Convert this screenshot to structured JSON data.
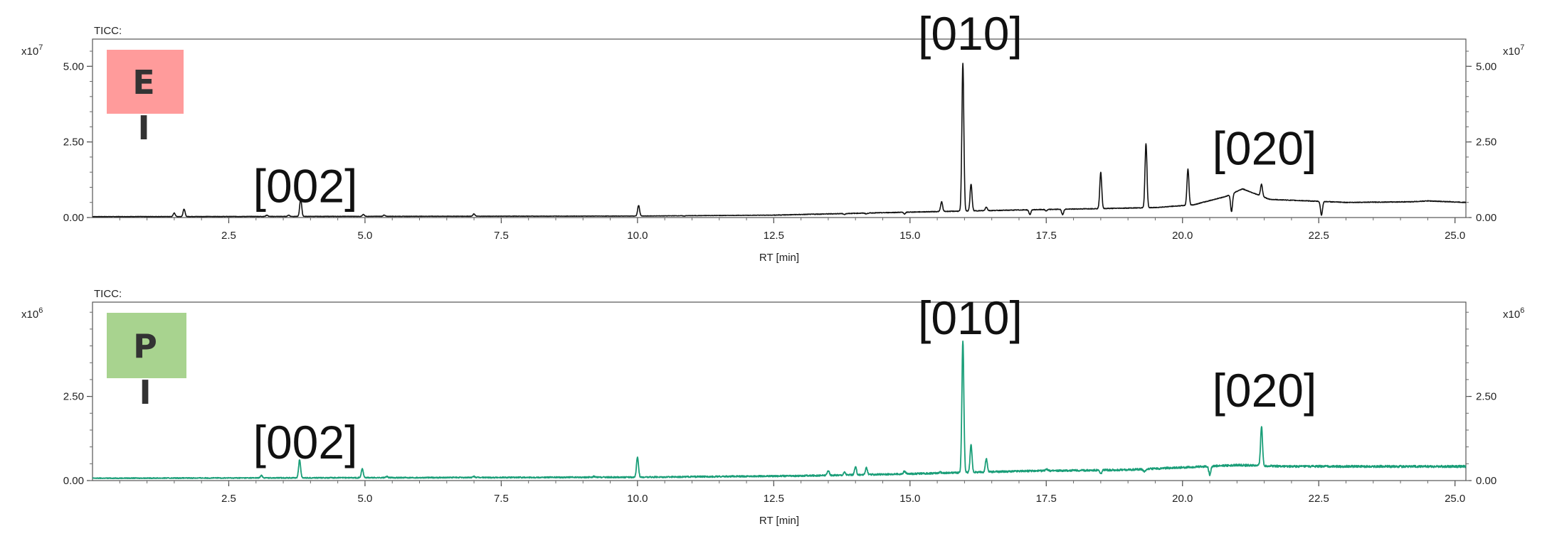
{
  "chart_data": [
    {
      "type": "line",
      "panel_label": "TICC:",
      "badge": {
        "letter": "E",
        "bar": "I",
        "color": "#ff9b9b"
      },
      "xlabel": "RT [min]",
      "y_multiplier": {
        "base": "x10",
        "exp": "7"
      },
      "xlim": [
        0.0,
        25.2
      ],
      "ylim": [
        0.0,
        5.9
      ],
      "x_ticks": [
        "2.5",
        "5.0",
        "7.5",
        "10.0",
        "12.5",
        "15.0",
        "17.5",
        "20.0",
        "22.5",
        "25.0"
      ],
      "y_ticks": [
        "0.00",
        "2.50",
        "5.00"
      ],
      "y_tick_values": [
        0.0,
        2.5,
        5.0
      ],
      "line_color": "#111111",
      "annotations": [
        {
          "text": "[002]",
          "x": 3.8
        },
        {
          "text": "[010]",
          "x": 16.0
        },
        {
          "text": "[020]",
          "x": 21.4
        }
      ],
      "baseline": [
        [
          0.0,
          0.03
        ],
        [
          10.0,
          0.05
        ],
        [
          12.5,
          0.08
        ],
        [
          15.0,
          0.18
        ],
        [
          17.0,
          0.25
        ],
        [
          18.6,
          0.3
        ],
        [
          19.5,
          0.33
        ],
        [
          20.2,
          0.42
        ],
        [
          20.8,
          0.7
        ],
        [
          21.1,
          0.95
        ],
        [
          21.6,
          0.6
        ],
        [
          23.0,
          0.5
        ],
        [
          24.2,
          0.52
        ],
        [
          24.5,
          0.55
        ],
        [
          25.2,
          0.5
        ]
      ],
      "peaks": [
        [
          1.5,
          0.15
        ],
        [
          1.68,
          0.28
        ],
        [
          3.2,
          0.08
        ],
        [
          3.6,
          0.08
        ],
        [
          3.82,
          0.62
        ],
        [
          4.97,
          0.1
        ],
        [
          5.35,
          0.08
        ],
        [
          7.0,
          0.12
        ],
        [
          10.02,
          0.4
        ],
        [
          10.85,
          0.05
        ],
        [
          13.5,
          0.12
        ],
        [
          13.8,
          0.1
        ],
        [
          14.2,
          0.12
        ],
        [
          14.9,
          0.12
        ],
        [
          15.58,
          0.52
        ],
        [
          15.97,
          5.1
        ],
        [
          16.12,
          1.1
        ],
        [
          16.4,
          0.35
        ],
        [
          17.2,
          0.1
        ],
        [
          17.5,
          0.22
        ],
        [
          17.8,
          0.1
        ],
        [
          18.5,
          1.5
        ],
        [
          19.33,
          2.45
        ],
        [
          20.1,
          1.6
        ],
        [
          20.9,
          0.2
        ],
        [
          21.45,
          1.1
        ],
        [
          22.55,
          0.08
        ]
      ]
    },
    {
      "type": "line",
      "panel_label": "TICC:",
      "badge": {
        "letter": "P",
        "bar": "I",
        "color": "#a8d38f"
      },
      "xlabel": "RT [min]",
      "y_multiplier": {
        "base": "x10",
        "exp": "6"
      },
      "xlim": [
        0.0,
        25.2
      ],
      "ylim": [
        0.0,
        5.3
      ],
      "x_ticks": [
        "2.5",
        "5.0",
        "7.5",
        "10.0",
        "12.5",
        "15.0",
        "17.5",
        "20.0",
        "22.5",
        "25.0"
      ],
      "y_ticks": [
        "0.00",
        "2.50"
      ],
      "y_tick_values": [
        0.0,
        2.5
      ],
      "line_color": "#1a9e78",
      "annotations": [
        {
          "text": "[002]",
          "x": 3.8
        },
        {
          "text": "[010]",
          "x": 16.0
        },
        {
          "text": "[020]",
          "x": 21.4
        }
      ],
      "baseline": [
        [
          0.0,
          0.07
        ],
        [
          10.0,
          0.1
        ],
        [
          13.0,
          0.14
        ],
        [
          15.0,
          0.2
        ],
        [
          17.0,
          0.28
        ],
        [
          19.0,
          0.32
        ],
        [
          21.0,
          0.46
        ],
        [
          22.0,
          0.42
        ],
        [
          25.2,
          0.42
        ]
      ],
      "peaks": [
        [
          3.1,
          0.15
        ],
        [
          3.8,
          0.62
        ],
        [
          4.95,
          0.35
        ],
        [
          5.4,
          0.12
        ],
        [
          7.0,
          0.12
        ],
        [
          9.2,
          0.12
        ],
        [
          10.0,
          0.7
        ],
        [
          13.5,
          0.3
        ],
        [
          13.8,
          0.25
        ],
        [
          14.0,
          0.4
        ],
        [
          14.2,
          0.38
        ],
        [
          14.9,
          0.28
        ],
        [
          15.55,
          0.25
        ],
        [
          15.97,
          4.15
        ],
        [
          16.12,
          1.05
        ],
        [
          16.4,
          0.65
        ],
        [
          17.5,
          0.35
        ],
        [
          18.5,
          0.2
        ],
        [
          19.3,
          0.25
        ],
        [
          20.5,
          0.18
        ],
        [
          21.45,
          1.6
        ]
      ]
    }
  ]
}
